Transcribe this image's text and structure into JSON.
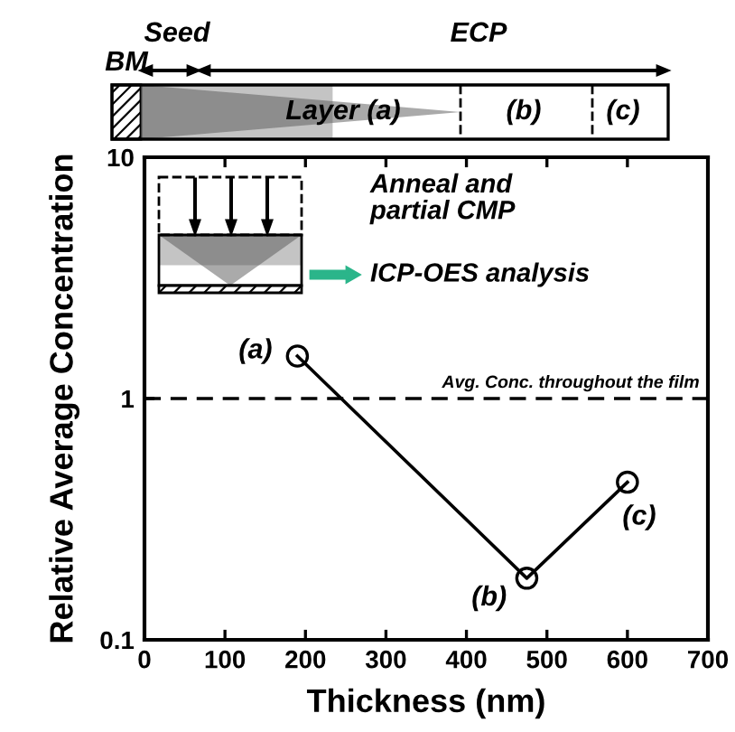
{
  "chart_data": {
    "type": "line",
    "xlabel": "Thickness (nm)",
    "ylabel": "Relative Average Concentration",
    "x": [
      190,
      475,
      600
    ],
    "series": [
      {
        "color": "#000000",
        "values": [
          1.5,
          0.18,
          0.45
        ]
      }
    ],
    "log": true,
    "xlim": [
      0,
      700
    ],
    "ylim": [
      0.1,
      10
    ],
    "xticks": [
      0,
      100,
      200,
      300,
      400,
      500,
      600,
      700
    ],
    "yticks": [
      0.1,
      1,
      10
    ],
    "marker": "circle",
    "line_style": "solid",
    "grid": false,
    "ref_lines": [
      {
        "axis": "y",
        "value": 1,
        "label": "Avg. Conc. throughout the film",
        "color": "#000000",
        "line_style": "dashed"
      }
    ],
    "annotations": [
      "BM",
      "Seed",
      "ECP",
      "Layer (a)",
      "(b)",
      "(c)",
      "Anneal and\npartial CMP",
      "ICP-OES analysis",
      {
        "text": "(a)",
        "x": 190,
        "y": 1.5
      },
      {
        "text": "(b)",
        "x": 475,
        "y": 0.18
      },
      {
        "text": "(c)",
        "x": 600,
        "y": 0.45
      }
    ]
  }
}
